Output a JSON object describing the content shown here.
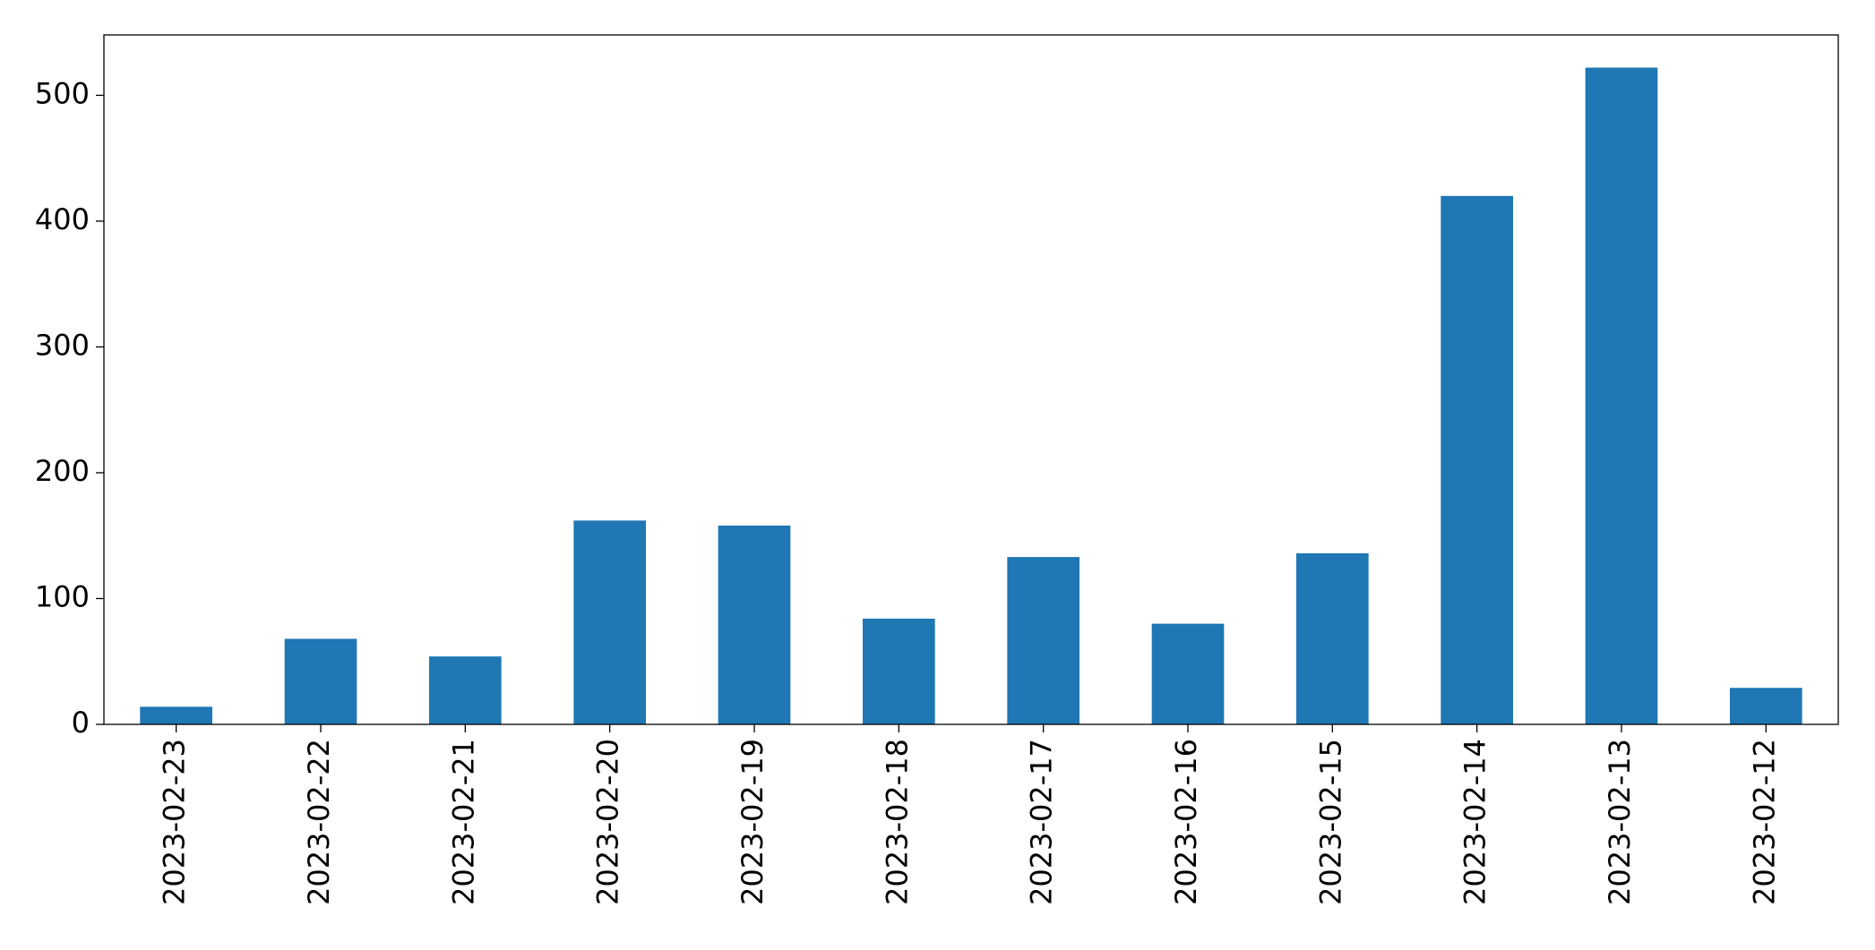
{
  "chart_data": {
    "type": "bar",
    "categories": [
      "2023-02-23",
      "2023-02-22",
      "2023-02-21",
      "2023-02-20",
      "2023-02-19",
      "2023-02-18",
      "2023-02-17",
      "2023-02-16",
      "2023-02-15",
      "2023-02-14",
      "2023-02-13",
      "2023-02-12"
    ],
    "values": [
      14,
      68,
      54,
      162,
      158,
      84,
      133,
      80,
      136,
      420,
      522,
      29
    ],
    "color": "#1f77b4",
    "ylim": [
      0,
      548
    ],
    "yticks": [
      0,
      100,
      200,
      300,
      400,
      500
    ],
    "grid": false
  }
}
